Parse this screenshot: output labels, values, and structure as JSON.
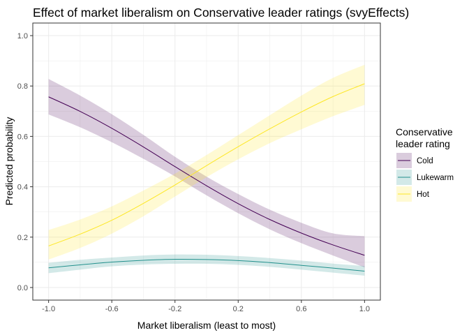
{
  "chart_data": {
    "type": "line",
    "title": "Effect of market liberalism on Conservative leader ratings (svyEffects)",
    "xlabel": "Market liberalism (least to most)",
    "ylabel": "Predicted probability",
    "xlim": [
      -1.0,
      1.0
    ],
    "ylim": [
      0.0,
      1.0
    ],
    "x_ticks": [
      -1.0,
      -0.6,
      -0.2,
      0.2,
      0.6,
      1.0
    ],
    "x_tick_labels": [
      "-1.0",
      "-0.6",
      "-0.2",
      "0.2",
      "0.6",
      "1.0"
    ],
    "y_ticks": [
      0.0,
      0.2,
      0.4,
      0.6,
      0.8,
      1.0
    ],
    "y_tick_labels": [
      "0.0",
      "0.2",
      "0.4",
      "0.6",
      "0.8",
      "1.0"
    ],
    "grid": true,
    "legend": {
      "title_lines": [
        "Conservative",
        "leader rating"
      ],
      "placement": "right"
    },
    "x": [
      -1.0,
      -0.8,
      -0.6,
      -0.4,
      -0.2,
      0.0,
      0.2,
      0.4,
      0.6,
      0.8,
      1.0
    ],
    "series": [
      {
        "name": "Cold",
        "color": "#440154",
        "fill": "#440154",
        "values": [
          0.757,
          0.699,
          0.632,
          0.558,
          0.48,
          0.404,
          0.333,
          0.27,
          0.216,
          0.169,
          0.128
        ],
        "lower": [
          0.687,
          0.636,
          0.577,
          0.511,
          0.441,
          0.366,
          0.295,
          0.231,
          0.176,
          0.127,
          0.08
        ],
        "upper": [
          0.828,
          0.762,
          0.688,
          0.606,
          0.519,
          0.44,
          0.371,
          0.309,
          0.257,
          0.215,
          0.204
        ]
      },
      {
        "name": "Lukewarm",
        "color": "#21908C",
        "fill": "#21908C",
        "values": [
          0.078,
          0.09,
          0.101,
          0.108,
          0.112,
          0.111,
          0.107,
          0.099,
          0.088,
          0.077,
          0.065
        ],
        "lower": [
          0.057,
          0.071,
          0.084,
          0.091,
          0.094,
          0.094,
          0.09,
          0.082,
          0.071,
          0.059,
          0.047
        ],
        "upper": [
          0.098,
          0.11,
          0.119,
          0.127,
          0.131,
          0.13,
          0.125,
          0.117,
          0.107,
          0.095,
          0.085
        ]
      },
      {
        "name": "Hot",
        "color": "#FDE725",
        "fill": "#FDE725",
        "values": [
          0.165,
          0.212,
          0.267,
          0.334,
          0.407,
          0.484,
          0.559,
          0.63,
          0.697,
          0.758,
          0.809
        ],
        "lower": [
          0.111,
          0.157,
          0.214,
          0.283,
          0.361,
          0.438,
          0.509,
          0.573,
          0.628,
          0.68,
          0.725
        ],
        "upper": [
          0.228,
          0.27,
          0.322,
          0.385,
          0.452,
          0.526,
          0.605,
          0.684,
          0.762,
          0.832,
          0.884
        ]
      }
    ]
  }
}
